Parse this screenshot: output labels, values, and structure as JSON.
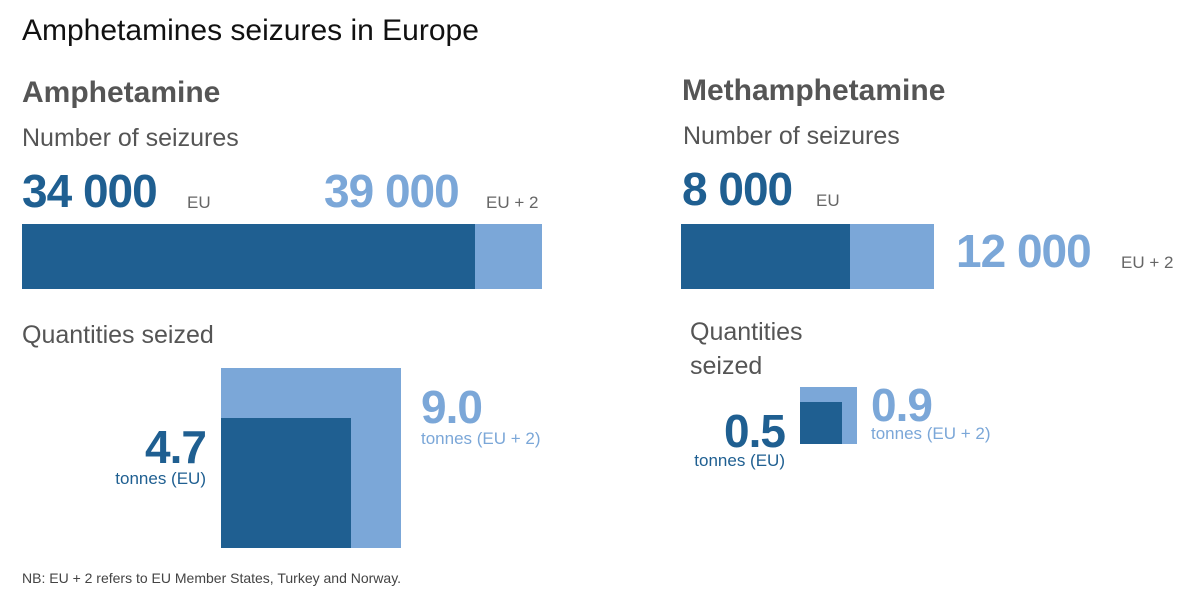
{
  "title": "Amphetamines seizures in Europe",
  "colors": {
    "eu": "#1f5f91",
    "eu2": "#7ba7d8"
  },
  "amphetamine": {
    "heading": "Amphetamine",
    "seizures_label": "Number of seizures",
    "eu_value": "34 000",
    "eu_label": "EU",
    "eu2_value": "39 000",
    "eu2_label": "EU + 2",
    "quantities_label": "Quantities seized",
    "q_eu_value": "4.7",
    "q_eu_label": "tonnes (EU)",
    "q_eu2_value": "9.0",
    "q_eu2_label": "tonnes (EU + 2)"
  },
  "methamphetamine": {
    "heading": "Methamphetamine",
    "seizures_label": "Number of seizures",
    "eu_value": "8 000",
    "eu_label": "EU",
    "eu2_value": "12 000",
    "eu2_label": "EU + 2",
    "quantities_label_1": "Quantities",
    "quantities_label_2": "seized",
    "q_eu_value": "0.5",
    "q_eu_label": "tonnes (EU)",
    "q_eu2_value": "0.9",
    "q_eu2_label": "tonnes (EU + 2)"
  },
  "note": "NB: EU + 2 refers to EU Member States, Turkey and Norway.",
  "chart_data": [
    {
      "type": "bar",
      "title": "Amphetamine - Number of seizures",
      "categories": [
        "EU",
        "EU + 2"
      ],
      "values": [
        34000,
        39000
      ]
    },
    {
      "type": "area-square",
      "title": "Amphetamine - Quantities seized (tonnes)",
      "categories": [
        "EU",
        "EU + 2"
      ],
      "values": [
        4.7,
        9.0
      ]
    },
    {
      "type": "bar",
      "title": "Methamphetamine - Number of seizures",
      "categories": [
        "EU",
        "EU + 2"
      ],
      "values": [
        8000,
        12000
      ]
    },
    {
      "type": "area-square",
      "title": "Methamphetamine - Quantities seized (tonnes)",
      "categories": [
        "EU",
        "EU + 2"
      ],
      "values": [
        0.5,
        0.9
      ]
    }
  ]
}
